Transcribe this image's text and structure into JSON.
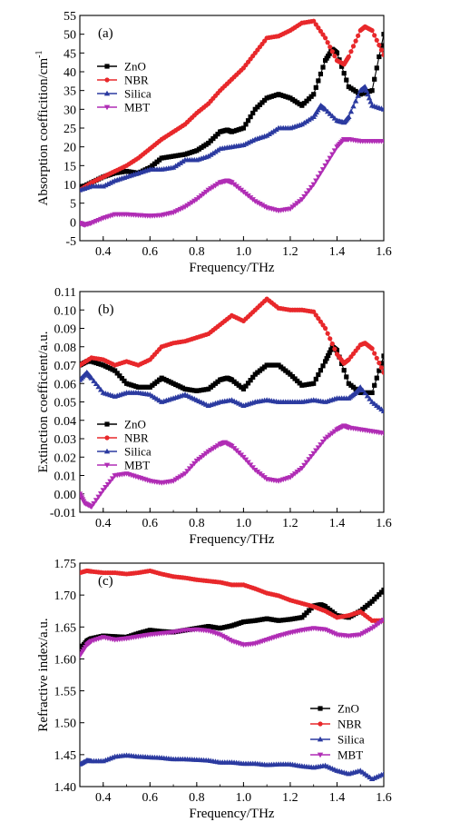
{
  "chart_data": [
    {
      "type": "line",
      "panel_label": "(a)",
      "xlabel": "Frequency/THz",
      "ylabel": "Absorption coefficition/cm",
      "ylabel_sup": "-1",
      "xlim": [
        0.3,
        1.6
      ],
      "ylim": [
        -5,
        55
      ],
      "xticks": [
        0.4,
        0.6,
        0.8,
        1.0,
        1.2,
        1.4,
        1.6
      ],
      "xtick_labels": [
        "0.4",
        "0.6",
        "0.8",
        "1.0",
        "1.2",
        "1.4",
        "1.6"
      ],
      "yticks": [
        -5,
        0,
        5,
        10,
        15,
        20,
        25,
        30,
        35,
        40,
        45,
        50,
        55
      ],
      "ytick_labels": [
        "-5",
        "0",
        "5",
        "10",
        "15",
        "20",
        "25",
        "30",
        "35",
        "40",
        "45",
        "50",
        "55"
      ],
      "legend_position": "left",
      "series": [
        {
          "name": "ZnO",
          "color": "#000000",
          "marker": "square",
          "x": [
            0.3,
            0.35,
            0.4,
            0.45,
            0.5,
            0.55,
            0.6,
            0.65,
            0.7,
            0.75,
            0.8,
            0.85,
            0.9,
            0.93,
            0.95,
            1.0,
            1.05,
            1.1,
            1.15,
            1.2,
            1.25,
            1.3,
            1.35,
            1.38,
            1.4,
            1.45,
            1.5,
            1.55,
            1.6
          ],
          "y": [
            9,
            10.5,
            12,
            13,
            13.5,
            13,
            14.5,
            17,
            17.5,
            18,
            19,
            21,
            24,
            24.5,
            24,
            25,
            30,
            33,
            34,
            33,
            31,
            34,
            43,
            46,
            45,
            36,
            34,
            35,
            50
          ]
        },
        {
          "name": "NBR",
          "color": "#e8282b",
          "marker": "circle",
          "x": [
            0.3,
            0.35,
            0.4,
            0.45,
            0.5,
            0.55,
            0.6,
            0.65,
            0.7,
            0.75,
            0.8,
            0.85,
            0.9,
            0.95,
            1.0,
            1.05,
            1.1,
            1.15,
            1.2,
            1.25,
            1.3,
            1.35,
            1.4,
            1.43,
            1.45,
            1.5,
            1.52,
            1.55,
            1.6
          ],
          "y": [
            8.5,
            10.5,
            12,
            13.5,
            15,
            17,
            19.5,
            22,
            24,
            26,
            29,
            31.5,
            35,
            38,
            41,
            45,
            49,
            49.5,
            51,
            53,
            53.5,
            49,
            43,
            42,
            44,
            51,
            52,
            51,
            44.5
          ]
        },
        {
          "name": "Silica",
          "color": "#2b3aa0",
          "marker": "triangle-up",
          "x": [
            0.3,
            0.35,
            0.4,
            0.45,
            0.5,
            0.55,
            0.6,
            0.65,
            0.7,
            0.75,
            0.8,
            0.85,
            0.9,
            0.95,
            1.0,
            1.05,
            1.1,
            1.15,
            1.2,
            1.25,
            1.3,
            1.33,
            1.35,
            1.4,
            1.43,
            1.45,
            1.5,
            1.52,
            1.55,
            1.6
          ],
          "y": [
            8.5,
            9.5,
            9.5,
            11,
            12,
            13,
            14,
            14,
            14.5,
            16.5,
            16.5,
            17.5,
            19.5,
            20,
            20.5,
            22,
            23,
            25,
            25,
            26,
            28,
            31,
            30,
            27,
            26.5,
            28,
            35,
            36,
            31,
            30
          ]
        },
        {
          "name": "MBT",
          "color": "#b02db5",
          "marker": "triangle-down",
          "x": [
            0.3,
            0.32,
            0.35,
            0.4,
            0.45,
            0.5,
            0.55,
            0.6,
            0.65,
            0.7,
            0.75,
            0.8,
            0.85,
            0.9,
            0.93,
            0.95,
            1.0,
            1.05,
            1.1,
            1.15,
            1.2,
            1.25,
            1.3,
            1.35,
            1.4,
            1.43,
            1.45,
            1.5,
            1.55,
            1.6
          ],
          "y": [
            -0.3,
            -0.8,
            -0.3,
            1,
            2,
            2,
            1.8,
            1.6,
            1.8,
            2.5,
            4,
            6,
            8.5,
            10.5,
            11,
            10.5,
            8,
            5.5,
            3.8,
            3,
            3.5,
            6,
            10,
            15,
            20,
            22,
            22,
            21.5,
            21.5,
            21.5
          ]
        }
      ]
    },
    {
      "type": "line",
      "panel_label": "(b)",
      "xlabel": "Frequency/THz",
      "ylabel": "Extinction coefficient/a.u.",
      "xlim": [
        0.3,
        1.6
      ],
      "ylim": [
        -0.01,
        0.11
      ],
      "xticks": [
        0.4,
        0.6,
        0.8,
        1.0,
        1.2,
        1.4,
        1.6
      ],
      "xtick_labels": [
        "0.4",
        "0.6",
        "0.8",
        "1.0",
        "1.2",
        "1.4",
        "1.6"
      ],
      "yticks": [
        -0.01,
        0.0,
        0.01,
        0.02,
        0.03,
        0.04,
        0.05,
        0.06,
        0.07,
        0.08,
        0.09,
        0.1,
        0.11
      ],
      "ytick_labels": [
        "-0.01",
        "0.00",
        "0.01",
        "0.02",
        "0.03",
        "0.04",
        "0.05",
        "0.06",
        "0.07",
        "0.08",
        "0.09",
        "0.10",
        "0.11"
      ],
      "legend_position": "left",
      "series": [
        {
          "name": "ZnO",
          "color": "#000000",
          "marker": "square",
          "x": [
            0.3,
            0.33,
            0.35,
            0.4,
            0.45,
            0.5,
            0.55,
            0.6,
            0.65,
            0.7,
            0.75,
            0.8,
            0.85,
            0.9,
            0.93,
            0.95,
            1.0,
            1.05,
            1.1,
            1.15,
            1.2,
            1.25,
            1.3,
            1.35,
            1.38,
            1.4,
            1.45,
            1.5,
            1.55,
            1.6
          ],
          "y": [
            0.07,
            0.072,
            0.072,
            0.07,
            0.067,
            0.06,
            0.058,
            0.058,
            0.063,
            0.06,
            0.057,
            0.056,
            0.057,
            0.062,
            0.063,
            0.062,
            0.057,
            0.065,
            0.07,
            0.07,
            0.065,
            0.059,
            0.06,
            0.072,
            0.08,
            0.078,
            0.06,
            0.055,
            0.055,
            0.075
          ]
        },
        {
          "name": "NBR",
          "color": "#e8282b",
          "marker": "circle",
          "x": [
            0.3,
            0.35,
            0.4,
            0.45,
            0.5,
            0.55,
            0.6,
            0.65,
            0.7,
            0.75,
            0.8,
            0.85,
            0.9,
            0.95,
            1.0,
            1.05,
            1.1,
            1.15,
            1.2,
            1.25,
            1.3,
            1.35,
            1.4,
            1.43,
            1.45,
            1.5,
            1.52,
            1.55,
            1.6
          ],
          "y": [
            0.07,
            0.074,
            0.073,
            0.07,
            0.072,
            0.07,
            0.073,
            0.08,
            0.082,
            0.083,
            0.085,
            0.087,
            0.092,
            0.097,
            0.094,
            0.1,
            0.106,
            0.101,
            0.1,
            0.1,
            0.099,
            0.09,
            0.076,
            0.071,
            0.073,
            0.081,
            0.082,
            0.079,
            0.066
          ]
        },
        {
          "name": "Silica",
          "color": "#2b3aa0",
          "marker": "triangle-up",
          "x": [
            0.3,
            0.33,
            0.35,
            0.4,
            0.45,
            0.5,
            0.55,
            0.6,
            0.65,
            0.7,
            0.75,
            0.8,
            0.85,
            0.9,
            0.95,
            1.0,
            1.05,
            1.1,
            1.15,
            1.2,
            1.25,
            1.3,
            1.35,
            1.4,
            1.45,
            1.48,
            1.5,
            1.55,
            1.6
          ],
          "y": [
            0.062,
            0.066,
            0.063,
            0.055,
            0.053,
            0.055,
            0.055,
            0.054,
            0.05,
            0.052,
            0.054,
            0.051,
            0.048,
            0.05,
            0.051,
            0.048,
            0.05,
            0.051,
            0.05,
            0.05,
            0.05,
            0.051,
            0.05,
            0.052,
            0.052,
            0.055,
            0.058,
            0.05,
            0.045
          ]
        },
        {
          "name": "MBT",
          "color": "#b02db5",
          "marker": "triangle-down",
          "x": [
            0.3,
            0.32,
            0.35,
            0.4,
            0.45,
            0.5,
            0.55,
            0.6,
            0.65,
            0.7,
            0.75,
            0.8,
            0.85,
            0.9,
            0.92,
            0.95,
            1.0,
            1.05,
            1.1,
            1.15,
            1.2,
            1.25,
            1.3,
            1.35,
            1.4,
            1.43,
            1.45,
            1.5,
            1.55,
            1.6
          ],
          "y": [
            0.0,
            -0.005,
            -0.007,
            0.002,
            0.01,
            0.011,
            0.009,
            0.007,
            0.006,
            0.007,
            0.011,
            0.018,
            0.023,
            0.027,
            0.028,
            0.026,
            0.02,
            0.013,
            0.008,
            0.007,
            0.009,
            0.014,
            0.022,
            0.03,
            0.035,
            0.037,
            0.036,
            0.035,
            0.034,
            0.033
          ]
        }
      ]
    },
    {
      "type": "line",
      "panel_label": "(c)",
      "xlabel": "Frequency/THz",
      "ylabel": "Refractive index/a.u.",
      "xlim": [
        0.3,
        1.6
      ],
      "ylim": [
        1.4,
        1.75
      ],
      "xticks": [
        0.4,
        0.6,
        0.8,
        1.0,
        1.2,
        1.4,
        1.6
      ],
      "xtick_labels": [
        "0.4",
        "0.6",
        "0.8",
        "1.0",
        "1.2",
        "1.4",
        "1.6"
      ],
      "yticks": [
        1.4,
        1.45,
        1.5,
        1.55,
        1.6,
        1.65,
        1.7,
        1.75
      ],
      "ytick_labels": [
        "1.40",
        "1.45",
        "1.50",
        "1.55",
        "1.60",
        "1.65",
        "1.70",
        "1.75"
      ],
      "legend_position": "bottom-right",
      "series": [
        {
          "name": "ZnO",
          "color": "#000000",
          "marker": "square",
          "x": [
            0.3,
            0.33,
            0.35,
            0.4,
            0.45,
            0.5,
            0.55,
            0.6,
            0.65,
            0.7,
            0.75,
            0.8,
            0.85,
            0.9,
            0.95,
            1.0,
            1.05,
            1.1,
            1.15,
            1.2,
            1.25,
            1.3,
            1.33,
            1.35,
            1.4,
            1.45,
            1.5,
            1.55,
            1.6
          ],
          "y": [
            1.615,
            1.628,
            1.632,
            1.636,
            1.635,
            1.634,
            1.64,
            1.645,
            1.643,
            1.642,
            1.645,
            1.648,
            1.651,
            1.648,
            1.652,
            1.658,
            1.66,
            1.663,
            1.66,
            1.662,
            1.665,
            1.683,
            1.685,
            1.682,
            1.668,
            1.665,
            1.675,
            1.69,
            1.708
          ]
        },
        {
          "name": "NBR",
          "color": "#e8282b",
          "marker": "circle",
          "x": [
            0.3,
            0.33,
            0.35,
            0.4,
            0.45,
            0.5,
            0.55,
            0.6,
            0.65,
            0.7,
            0.75,
            0.8,
            0.85,
            0.9,
            0.95,
            1.0,
            1.05,
            1.1,
            1.15,
            1.2,
            1.25,
            1.3,
            1.35,
            1.4,
            1.45,
            1.5,
            1.55,
            1.6
          ],
          "y": [
            1.735,
            1.738,
            1.737,
            1.735,
            1.735,
            1.733,
            1.735,
            1.738,
            1.733,
            1.729,
            1.727,
            1.724,
            1.722,
            1.72,
            1.716,
            1.716,
            1.71,
            1.703,
            1.699,
            1.692,
            1.687,
            1.682,
            1.675,
            1.665,
            1.668,
            1.674,
            1.66,
            1.66
          ]
        },
        {
          "name": "Silica",
          "color": "#2b3aa0",
          "marker": "triangle-up",
          "x": [
            0.3,
            0.33,
            0.35,
            0.4,
            0.45,
            0.5,
            0.55,
            0.6,
            0.65,
            0.7,
            0.75,
            0.8,
            0.85,
            0.9,
            0.95,
            1.0,
            1.05,
            1.1,
            1.15,
            1.2,
            1.25,
            1.3,
            1.35,
            1.4,
            1.45,
            1.5,
            1.55,
            1.6
          ],
          "y": [
            1.435,
            1.441,
            1.44,
            1.44,
            1.447,
            1.449,
            1.447,
            1.446,
            1.445,
            1.443,
            1.443,
            1.442,
            1.441,
            1.438,
            1.438,
            1.436,
            1.436,
            1.434,
            1.435,
            1.435,
            1.432,
            1.43,
            1.433,
            1.425,
            1.42,
            1.425,
            1.412,
            1.42
          ]
        },
        {
          "name": "MBT",
          "color": "#b02db5",
          "marker": "triangle-down",
          "x": [
            0.3,
            0.33,
            0.35,
            0.4,
            0.45,
            0.5,
            0.55,
            0.6,
            0.65,
            0.7,
            0.75,
            0.8,
            0.85,
            0.9,
            0.95,
            1.0,
            1.05,
            1.1,
            1.15,
            1.2,
            1.25,
            1.3,
            1.35,
            1.4,
            1.45,
            1.5,
            1.55,
            1.6
          ],
          "y": [
            1.605,
            1.622,
            1.628,
            1.634,
            1.63,
            1.632,
            1.635,
            1.638,
            1.64,
            1.642,
            1.645,
            1.646,
            1.644,
            1.638,
            1.628,
            1.622,
            1.624,
            1.63,
            1.636,
            1.641,
            1.645,
            1.648,
            1.646,
            1.638,
            1.636,
            1.638,
            1.648,
            1.661
          ]
        }
      ]
    }
  ]
}
